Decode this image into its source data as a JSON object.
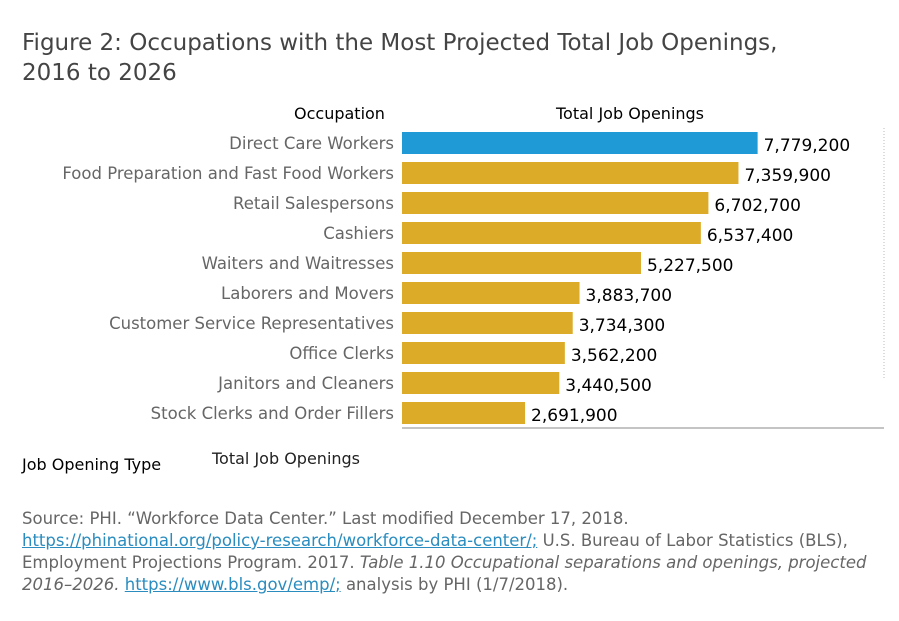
{
  "title_line1": "Figure 2: Occupations with the Most Projected Total Job Openings,",
  "title_line2": "2016 to 2026",
  "column_headers": {
    "occupation": "Occupation",
    "openings": "Total Job Openings"
  },
  "legend": {
    "title": "Job Opening Type",
    "item": "Total Job Openings"
  },
  "colors": {
    "highlight": "#1f9ad6",
    "bar": "#dcab27",
    "label": "#666666",
    "value": "#000000"
  },
  "chart_data": {
    "type": "bar",
    "orientation": "horizontal",
    "categories": [
      "Direct Care Workers",
      "Food Preparation and Fast Food Workers",
      "Retail Salespersons",
      "Cashiers",
      "Waiters and Waitresses",
      "Laborers and Movers",
      "Customer Service Representatives",
      "Office Clerks",
      "Janitors and Cleaners",
      "Stock Clerks and Order Fillers"
    ],
    "values": [
      7779200,
      7359900,
      6702700,
      6537400,
      5227500,
      3883700,
      3734300,
      3562200,
      3440500,
      2691900
    ],
    "value_labels": [
      "7,779,200",
      "7,359,900",
      "6,702,700",
      "6,537,400",
      "5,227,500",
      "3,883,700",
      "3,734,300",
      "3,562,200",
      "3,440,500",
      "2,691,900"
    ],
    "highlight_index": 0,
    "xlim": [
      0,
      10500000
    ]
  },
  "source": {
    "prefix": "Source: PHI. “Workforce Data Center.” Last modified December 17, 2018.",
    "link1": "https://phinational.org/policy-research/workforce-data-center/;",
    "mid": " U.S. Bureau of Labor Statistics (BLS), Employment Projections Program. 2017. ",
    "italic": "Table 1.10 Occupational separations and openings, projected 2016–2026.",
    "link2": "https://www.bls.gov/emp/;",
    "suffix": " analysis by PHI (1/7/2018)."
  }
}
